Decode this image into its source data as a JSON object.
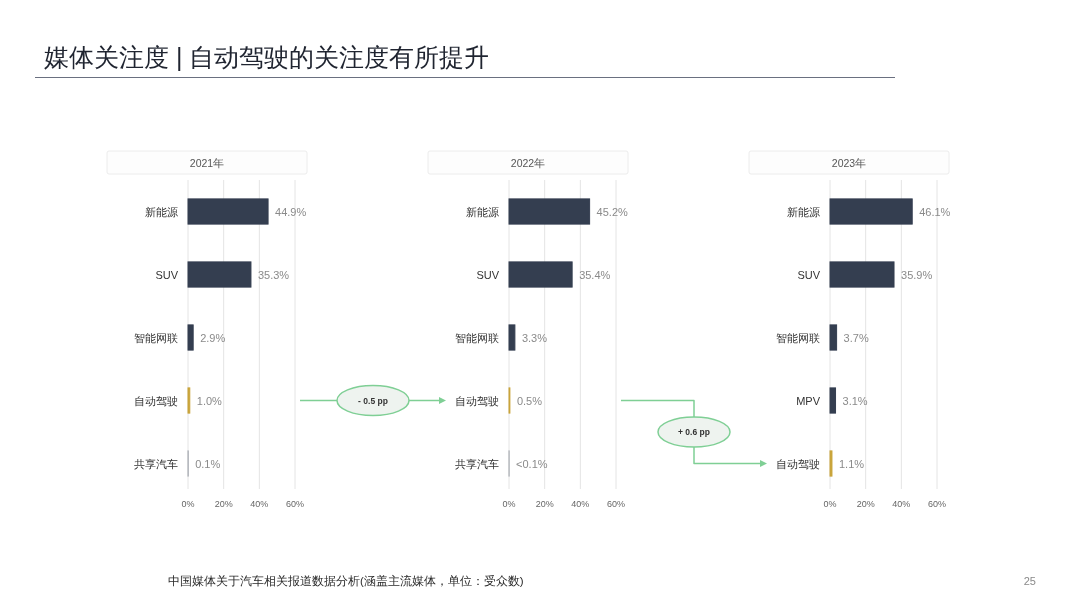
{
  "chart_data": [
    {
      "type": "bar",
      "orientation": "horizontal",
      "title": "2021年",
      "categories": [
        "新能源",
        "SUV",
        "智能网联",
        "自动驾驶",
        "共享汽车"
      ],
      "values": [
        44.9,
        35.3,
        2.9,
        1.0,
        0.1
      ],
      "colors": [
        "#343e50",
        "#343e50",
        "#343e50",
        "#c9a43a",
        "#a3a7ae"
      ],
      "value_labels": [
        "44.9%",
        "35.3%",
        "2.9%",
        "1.0%",
        "0.1%"
      ],
      "xlim": [
        0,
        60
      ],
      "xticks": [
        {
          "value": 0,
          "label": "0%"
        },
        {
          "value": 20,
          "label": "20%"
        },
        {
          "value": 40,
          "label": "40%"
        },
        {
          "value": 60,
          "label": "60%"
        }
      ],
      "grid": "x",
      "annotations": [
        "媒体关注度 | 自动驾驶的关注度有所提升",
        "中国媒体关于汽车相关报道数据分析(涵盖主流媒体，单位：受众数)",
        "25"
      ]
    },
    {
      "type": "bar",
      "orientation": "horizontal",
      "title": "2022年",
      "categories": [
        "新能源",
        "SUV",
        "智能网联",
        "自动驾驶",
        "共享汽车"
      ],
      "values": [
        45.2,
        35.4,
        3.3,
        0.5,
        0.05
      ],
      "colors": [
        "#343e50",
        "#343e50",
        "#343e50",
        "#c9a43a",
        "#a3a7ae"
      ],
      "value_labels": [
        "45.2%",
        "35.4%",
        "3.3%",
        "0.5%",
        "<0.1%"
      ],
      "xlim": [
        0,
        60
      ],
      "xticks": [
        {
          "value": 0,
          "label": "0%"
        },
        {
          "value": 20,
          "label": "20%"
        },
        {
          "value": 40,
          "label": "40%"
        },
        {
          "value": 60,
          "label": "60%"
        }
      ],
      "grid": "x",
      "annotations": [
        "- 0.5 pp"
      ]
    },
    {
      "type": "bar",
      "orientation": "horizontal",
      "title": "2023年",
      "categories": [
        "新能源",
        "SUV",
        "智能网联",
        "MPV",
        "自动驾驶"
      ],
      "values": [
        46.1,
        35.9,
        3.7,
        3.1,
        1.1
      ],
      "colors": [
        "#343e50",
        "#343e50",
        "#343e50",
        "#343e50",
        "#c9a43a"
      ],
      "value_labels": [
        "46.1%",
        "35.9%",
        "3.7%",
        "3.1%",
        "1.1%"
      ],
      "xlim": [
        0,
        60
      ],
      "xticks": [
        {
          "value": 0,
          "label": "0%"
        },
        {
          "value": 20,
          "label": "20%"
        },
        {
          "value": 40,
          "label": "40%"
        },
        {
          "value": 60,
          "label": "60%"
        }
      ],
      "grid": "x",
      "annotations": [
        "+ 0.6 pp"
      ]
    }
  ]
}
